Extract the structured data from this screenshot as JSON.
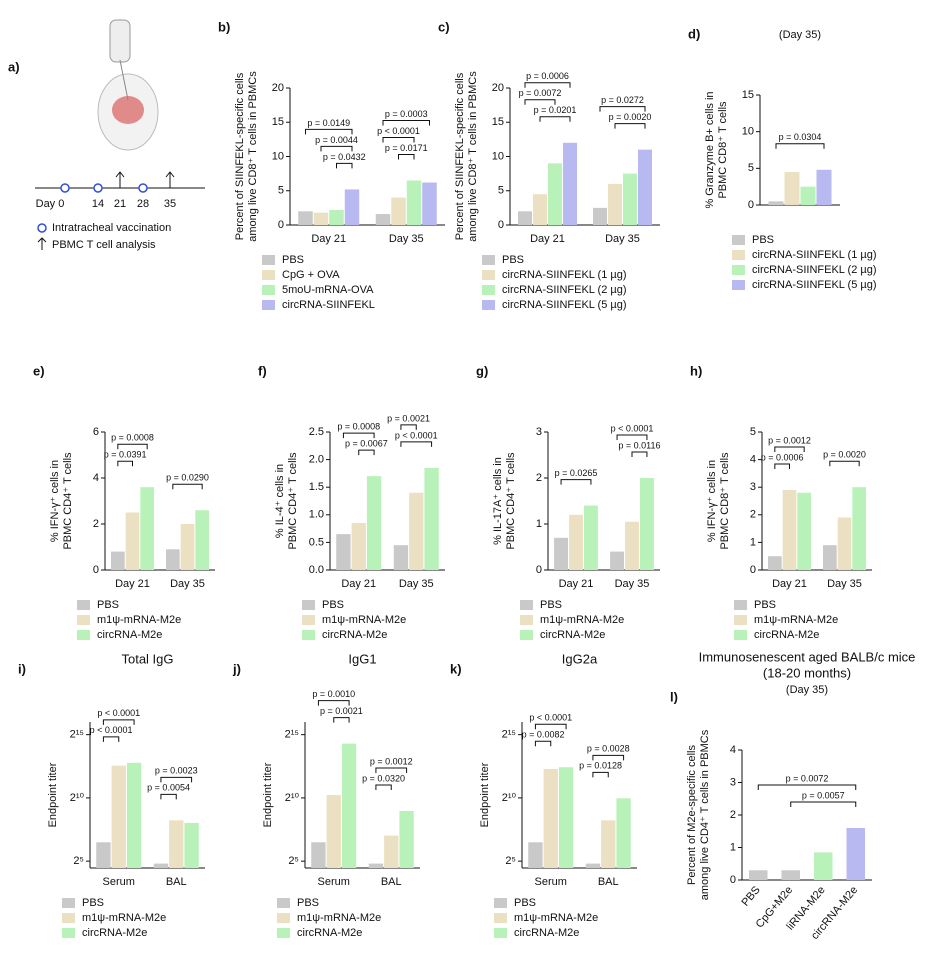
{
  "schematic": {
    "panel": "a)",
    "timeline": [
      "Day 0",
      "14",
      "21",
      "28",
      "35"
    ],
    "legend": [
      "Intratracheal vaccination",
      "PBMC T cell analysis"
    ]
  },
  "chart_data": [
    {
      "type": "bar",
      "panel": "b)",
      "ylabel": [
        "Percent of SIINFEKL-specific cells",
        "among live CD8⁺ T cells in PBMCs"
      ],
      "ylim": [
        0,
        20
      ],
      "yticks": [
        0,
        5,
        10,
        15,
        20
      ],
      "categories": [
        "Day 21",
        "Day 35"
      ],
      "series": [
        {
          "name": "PBS",
          "color": "#c9c9c9",
          "values": [
            2,
            1.6
          ]
        },
        {
          "name": "CpG + OVA",
          "color": "#ece0c2",
          "values": [
            1.8,
            4
          ]
        },
        {
          "name": "5moU-mRNA-OVA",
          "color": "#b9f2b9",
          "values": [
            2.2,
            6.5
          ]
        },
        {
          "name": "circRNA-SIINFEKL",
          "color": "#b9b9f2",
          "values": [
            5.2,
            6.2
          ]
        }
      ],
      "comparisons": [
        {
          "label": "p = 0.0432",
          "group": "Day 21",
          "from": "5moU-mRNA-OVA",
          "to": "circRNA-SIINFEKL"
        },
        {
          "label": "p = 0.0044",
          "group": "Day 21",
          "from": "CpG + OVA",
          "to": "circRNA-SIINFEKL"
        },
        {
          "label": "p = 0.0149",
          "group": "Day 21",
          "from": "PBS",
          "to": "circRNA-SIINFEKL"
        },
        {
          "label": "p = 0.0171",
          "group": "Day 35",
          "from": "CpG + OVA",
          "to": "5moU-mRNA-OVA"
        },
        {
          "label": "p < 0.0001",
          "group": "Day 35",
          "from": "PBS",
          "to": "5moU-mRNA-OVA"
        },
        {
          "label": "p = 0.0003",
          "group": "Day 35",
          "from": "PBS",
          "to": "circRNA-SIINFEKL"
        }
      ]
    },
    {
      "type": "bar",
      "panel": "c)",
      "ylabel": [
        "Percent of SIINFEKL-specific cells",
        "among live CD8⁺ T cells in PBMCs"
      ],
      "ylim": [
        0,
        20
      ],
      "yticks": [
        0,
        5,
        10,
        15,
        20
      ],
      "categories": [
        "Day 21",
        "Day 35"
      ],
      "series": [
        {
          "name": "PBS",
          "color": "#c9c9c9",
          "values": [
            2,
            2.5
          ]
        },
        {
          "name": "circRNA-SIINFEKL (1 µg)",
          "color": "#ece0c2",
          "values": [
            4.5,
            6
          ]
        },
        {
          "name": "circRNA-SIINFEKL (2 µg)",
          "color": "#b9f2b9",
          "values": [
            9,
            7.5
          ]
        },
        {
          "name": "circRNA-SIINFEKL (5 µg)",
          "color": "#b9b9f2",
          "values": [
            12,
            11
          ]
        }
      ],
      "comparisons": [
        {
          "label": "p = 0.0201",
          "group": "Day 21",
          "from": "circRNA-SIINFEKL (1 µg)",
          "to": "circRNA-SIINFEKL (5 µg)"
        },
        {
          "label": "p = 0.0072",
          "group": "Day 21",
          "from": "PBS",
          "to": "circRNA-SIINFEKL (2 µg)"
        },
        {
          "label": "p = 0.0006",
          "group": "Day 21",
          "from": "PBS",
          "to": "circRNA-SIINFEKL (5 µg)"
        },
        {
          "label": "p = 0.0020",
          "group": "Day 35",
          "from": "circRNA-SIINFEKL (1 µg)",
          "to": "circRNA-SIINFEKL (5 µg)"
        },
        {
          "label": "p = 0.0272",
          "group": "Day 35",
          "from": "PBS",
          "to": "circRNA-SIINFEKL (5 µg)"
        }
      ]
    },
    {
      "type": "bar",
      "panel": "d)",
      "subtitle": "(Day 35)",
      "ylabel": [
        "% Granzyme B+ cells in",
        "PBMC CD8⁺ T cells"
      ],
      "ylim": [
        0,
        15
      ],
      "yticks": [
        0,
        5,
        10,
        15
      ],
      "categories": [
        null
      ],
      "series": [
        {
          "name": "PBS",
          "color": "#c9c9c9",
          "values": [
            0.5
          ]
        },
        {
          "name": "circRNA-SIINFEKL (1 µg)",
          "color": "#ece0c2",
          "values": [
            4.5
          ]
        },
        {
          "name": "circRNA-SIINFEKL (2 µg)",
          "color": "#b9f2b9",
          "values": [
            2.5
          ]
        },
        {
          "name": "circRNA-SIINFEKL (5 µg)",
          "color": "#b9b9f2",
          "values": [
            4.8
          ]
        }
      ],
      "comparisons": [
        {
          "label": "p = 0.0304",
          "from": "PBS",
          "to": "circRNA-SIINFEKL (5 µg)"
        }
      ]
    },
    {
      "type": "bar",
      "panel": "e)",
      "ylabel": [
        "% IFN-γ⁺ cells in",
        "PBMC CD4⁺ T cells"
      ],
      "ylim": [
        0,
        6
      ],
      "yticks": [
        0,
        2,
        4,
        6
      ],
      "categories": [
        "Day 21",
        "Day 35"
      ],
      "series": [
        {
          "name": "PBS",
          "color": "#c9c9c9",
          "values": [
            0.8,
            0.9
          ]
        },
        {
          "name": "m1ψ-mRNA-M2e",
          "color": "#ece0c2",
          "values": [
            2.5,
            2
          ]
        },
        {
          "name": "circRNA-M2e",
          "color": "#b9f2b9",
          "values": [
            3.6,
            2.6
          ]
        }
      ],
      "comparisons": [
        {
          "label": "p = 0.0391",
          "group": "Day 21",
          "from": "PBS",
          "to": "m1ψ-mRNA-M2e"
        },
        {
          "label": "p = 0.0008",
          "group": "Day 21",
          "from": "PBS",
          "to": "circRNA-M2e"
        },
        {
          "label": "p = 0.0290",
          "group": "Day 35",
          "from": "PBS",
          "to": "circRNA-M2e"
        }
      ]
    },
    {
      "type": "bar",
      "panel": "f)",
      "ylabel": [
        "% IL-4⁺ cells in",
        "PBMC CD4⁺ T cells"
      ],
      "ylim": [
        0,
        2.5
      ],
      "yticks": [
        {
          "value": 0,
          "label": "0.0"
        },
        0.5,
        {
          "value": 1,
          "label": "1.0"
        },
        1.5,
        {
          "value": 2,
          "label": "2.0"
        },
        2.5
      ],
      "categories": [
        "Day 21",
        "Day 35"
      ],
      "series": [
        {
          "name": "PBS",
          "color": "#c9c9c9",
          "values": [
            0.65,
            0.45
          ]
        },
        {
          "name": "m1ψ-mRNA-M2e",
          "color": "#ece0c2",
          "values": [
            0.85,
            1.4
          ]
        },
        {
          "name": "circRNA-M2e",
          "color": "#b9f2b9",
          "values": [
            1.7,
            1.85
          ]
        }
      ],
      "comparisons": [
        {
          "label": "p = 0.0067",
          "group": "Day 21",
          "from": "m1ψ-mRNA-M2e",
          "to": "circRNA-M2e"
        },
        {
          "label": "p = 0.0008",
          "group": "Day 21",
          "from": "PBS",
          "to": "circRNA-M2e"
        },
        {
          "label": "p < 0.0001",
          "group": "Day 35",
          "from": "PBS",
          "to": "circRNA-M2e"
        },
        {
          "label": "p = 0.0021",
          "group": "Day 35",
          "from": "PBS",
          "to": "m1ψ-mRNA-M2e"
        }
      ]
    },
    {
      "type": "bar",
      "panel": "g)",
      "ylabel": [
        "% IL-17A⁺ cells in",
        "PBMC CD4⁺ T cells"
      ],
      "ylim": [
        0,
        3
      ],
      "yticks": [
        0,
        1,
        2,
        3
      ],
      "categories": [
        "Day 21",
        "Day 35"
      ],
      "series": [
        {
          "name": "PBS",
          "color": "#c9c9c9",
          "values": [
            0.7,
            0.4
          ]
        },
        {
          "name": "m1ψ-mRNA-M2e",
          "color": "#ece0c2",
          "values": [
            1.2,
            1.05
          ]
        },
        {
          "name": "circRNA-M2e",
          "color": "#b9f2b9",
          "values": [
            1.4,
            2
          ]
        }
      ],
      "comparisons": [
        {
          "label": "p = 0.0265",
          "group": "Day 21",
          "from": "PBS",
          "to": "circRNA-M2e"
        },
        {
          "label": "p = 0.0116",
          "group": "Day 35",
          "from": "m1ψ-mRNA-M2e",
          "to": "circRNA-M2e"
        },
        {
          "label": "p < 0.0001",
          "group": "Day 35",
          "from": "PBS",
          "to": "circRNA-M2e"
        }
      ]
    },
    {
      "type": "bar",
      "panel": "h)",
      "ylabel": [
        "% IFN-γ⁺ cells in",
        "PBMC CD8⁺ T cells"
      ],
      "ylim": [
        0,
        5
      ],
      "yticks": [
        0,
        1,
        2,
        3,
        4,
        5
      ],
      "categories": [
        "Day 21",
        "Day 35"
      ],
      "series": [
        {
          "name": "PBS",
          "color": "#c9c9c9",
          "values": [
            0.5,
            0.9
          ]
        },
        {
          "name": "m1ψ-mRNA-M2e",
          "color": "#ece0c2",
          "values": [
            2.9,
            1.9
          ]
        },
        {
          "name": "circRNA-M2e",
          "color": "#b9f2b9",
          "values": [
            2.8,
            3
          ]
        }
      ],
      "comparisons": [
        {
          "label": "p = 0.0006",
          "group": "Day 21",
          "from": "PBS",
          "to": "m1ψ-mRNA-M2e"
        },
        {
          "label": "p = 0.0012",
          "group": "Day 21",
          "from": "PBS",
          "to": "circRNA-M2e"
        },
        {
          "label": "p = 0.0020",
          "group": "Day 35",
          "from": "PBS",
          "to": "circRNA-M2e"
        }
      ]
    },
    {
      "type": "bar",
      "panel": "i)",
      "title": [
        "Total IgG"
      ],
      "ylabel": [
        "Endpoint titer"
      ],
      "log": true,
      "ylim": [
        22,
        65536
      ],
      "yticks": [
        {
          "value": 32,
          "label": "2⁵"
        },
        {
          "value": 1024,
          "label": "2¹⁰"
        },
        {
          "value": 32768,
          "label": "2¹⁵"
        }
      ],
      "categories": [
        "Serum",
        "BAL"
      ],
      "series": [
        {
          "name": "PBS",
          "color": "#c9c9c9",
          "values": [
            90,
            28
          ]
        },
        {
          "name": "m1ψ-mRNA-M2e",
          "color": "#ece0c2",
          "values": [
            6000,
            300
          ]
        },
        {
          "name": "circRNA-M2e",
          "color": "#b9f2b9",
          "values": [
            7000,
            260
          ]
        }
      ],
      "comparisons": [
        {
          "label": "p < 0.0001",
          "group": "Serum",
          "from": "PBS",
          "to": "m1ψ-mRNA-M2e"
        },
        {
          "label": "p < 0.0001",
          "group": "Serum",
          "from": "PBS",
          "to": "circRNA-M2e"
        },
        {
          "label": "p = 0.0054",
          "group": "BAL",
          "from": "PBS",
          "to": "m1ψ-mRNA-M2e"
        },
        {
          "label": "p = 0.0023",
          "group": "BAL",
          "from": "PBS",
          "to": "circRNA-M2e"
        }
      ]
    },
    {
      "type": "bar",
      "panel": "j)",
      "title": [
        "IgG1"
      ],
      "ylabel": [
        "Endpoint titer"
      ],
      "log": true,
      "ylim": [
        22,
        65536
      ],
      "yticks": [
        {
          "value": 32,
          "label": "2⁵"
        },
        {
          "value": 1024,
          "label": "2¹⁰"
        },
        {
          "value": 32768,
          "label": "2¹⁵"
        }
      ],
      "categories": [
        "Serum",
        "BAL"
      ],
      "series": [
        {
          "name": "PBS",
          "color": "#c9c9c9",
          "values": [
            90,
            28
          ]
        },
        {
          "name": "m1ψ-mRNA-M2e",
          "color": "#ece0c2",
          "values": [
            1200,
            130
          ]
        },
        {
          "name": "circRNA-M2e",
          "color": "#b9f2b9",
          "values": [
            20000,
            500
          ]
        }
      ],
      "comparisons": [
        {
          "label": "p = 0.0021",
          "group": "Serum",
          "from": "m1ψ-mRNA-M2e",
          "to": "circRNA-M2e"
        },
        {
          "label": "p = 0.0010",
          "group": "Serum",
          "from": "PBS",
          "to": "circRNA-M2e"
        },
        {
          "label": "p = 0.0320",
          "group": "BAL",
          "from": "PBS",
          "to": "m1ψ-mRNA-M2e"
        },
        {
          "label": "p = 0.0012",
          "group": "BAL",
          "from": "PBS",
          "to": "circRNA-M2e"
        }
      ]
    },
    {
      "type": "bar",
      "panel": "k)",
      "title": [
        "IgG2a"
      ],
      "ylabel": [
        "Endpoint titer"
      ],
      "log": true,
      "ylim": [
        22,
        65536
      ],
      "yticks": [
        {
          "value": 32,
          "label": "2⁵"
        },
        {
          "value": 1024,
          "label": "2¹⁰"
        },
        {
          "value": 32768,
          "label": "2¹⁵"
        }
      ],
      "categories": [
        "Serum",
        "BAL"
      ],
      "series": [
        {
          "name": "PBS",
          "color": "#c9c9c9",
          "values": [
            90,
            28
          ]
        },
        {
          "name": "m1ψ-mRNA-M2e",
          "color": "#ece0c2",
          "values": [
            5000,
            300
          ]
        },
        {
          "name": "circRNA-M2e",
          "color": "#b9f2b9",
          "values": [
            5500,
            1000
          ]
        }
      ],
      "comparisons": [
        {
          "label": "p = 0.0082",
          "group": "Serum",
          "from": "PBS",
          "to": "m1ψ-mRNA-M2e"
        },
        {
          "label": "p < 0.0001",
          "group": "Serum",
          "from": "PBS",
          "to": "circRNA-M2e"
        },
        {
          "label": "p = 0.0128",
          "group": "BAL",
          "from": "PBS",
          "to": "m1ψ-mRNA-M2e"
        },
        {
          "label": "p = 0.0028",
          "group": "BAL",
          "from": "PBS",
          "to": "circRNA-M2e"
        }
      ]
    },
    {
      "type": "bar",
      "panel": "l)",
      "title": [
        "Immunosenescent aged BALB/c mice",
        "(18-20 months)"
      ],
      "subtitle": "(Day 35)",
      "ylabel": [
        "Percent of M2e-specific cells",
        "among live CD4⁺ T cells in PBMCs"
      ],
      "ylim": [
        0,
        4
      ],
      "yticks": [
        0,
        1,
        2,
        3,
        4
      ],
      "categories": [
        "PBS",
        "CpG+M2e",
        "liRNA-M2e",
        "circRNA-M2e"
      ],
      "values": [
        0.3,
        0.3,
        0.85,
        1.6
      ],
      "colors": [
        "#c9c9c9",
        "#c9c9c9",
        "#b9f2b9",
        "#b9b9f2"
      ],
      "comparisons": [
        {
          "label": "p = 0.0057",
          "from": "CpG+M2e",
          "to": "circRNA-M2e"
        },
        {
          "label": "p = 0.0072",
          "from": "PBS",
          "to": "circRNA-M2e"
        }
      ]
    }
  ]
}
